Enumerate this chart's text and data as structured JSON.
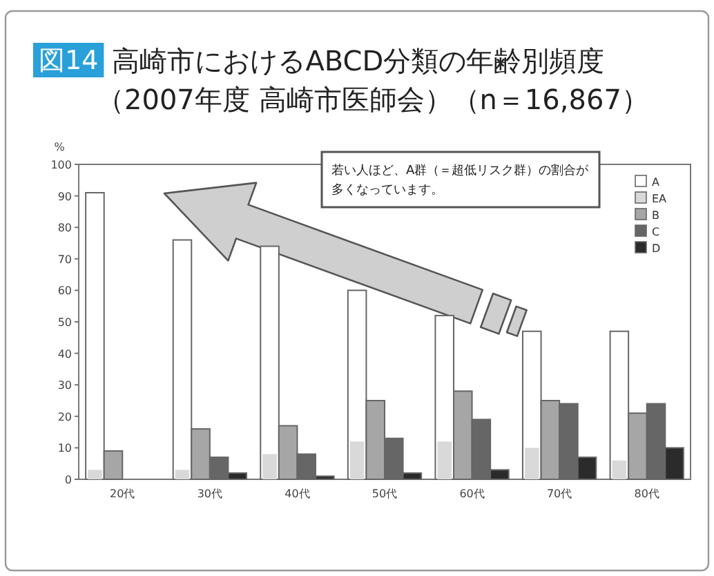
{
  "chart_data": {
    "type": "bar",
    "title": "高崎市におけるABCD分類の年齢別頻度",
    "subtitle": "（2007年度 高崎市医師会）（n＝16,867）",
    "ylabel": "%",
    "categories": [
      "20代",
      "30代",
      "40代",
      "50代",
      "60代",
      "70代",
      "80代"
    ],
    "series": [
      {
        "name": "A",
        "color": "#ffffff",
        "values": [
          91,
          76,
          74,
          60,
          52,
          47,
          47
        ]
      },
      {
        "name": "EA",
        "color": "#d9d9d9",
        "values": [
          3,
          3,
          8,
          12,
          12,
          10,
          6
        ]
      },
      {
        "name": "B",
        "color": "#a6a6a6",
        "values": [
          9,
          16,
          17,
          25,
          28,
          25,
          21
        ]
      },
      {
        "name": "C",
        "color": "#666666",
        "values": [
          0,
          7,
          8,
          13,
          19,
          24,
          24
        ]
      },
      {
        "name": "D",
        "color": "#2b2b2b",
        "values": [
          0,
          2,
          1,
          2,
          3,
          7,
          10
        ]
      }
    ],
    "ylim": [
      0,
      100
    ],
    "yticks": [
      0,
      10,
      20,
      30,
      40,
      50,
      60,
      70,
      80,
      90,
      100
    ],
    "legend": "top right",
    "annotations": [
      "図14",
      "若い人ほど、A群（＝超低リスク群）の割合が多くなっています。"
    ]
  }
}
